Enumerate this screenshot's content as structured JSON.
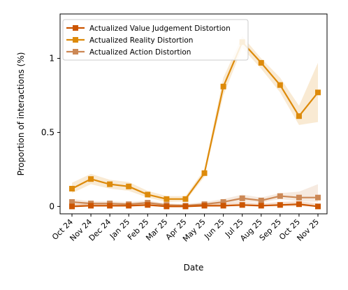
{
  "chart_data": {
    "type": "line",
    "xlabel": "Date",
    "ylabel": "Proportion of interactions (%)",
    "categories": [
      "Oct 24",
      "Nov 24",
      "Dec 24",
      "Jan 25",
      "Feb 25",
      "Mar 25",
      "Apr 25",
      "May 25",
      "Jun 25",
      "Jul 25",
      "Aug 25",
      "Sep 25",
      "Oct 25",
      "Nov 25"
    ],
    "ylim": [
      -0.05,
      1.3
    ],
    "yticks": [
      0,
      0.5,
      1
    ],
    "ytick_labels": [
      "0",
      "0.5",
      "1"
    ],
    "grid": false,
    "legend_position": "top-left",
    "series": [
      {
        "name": "Actualized Value Judgement Distortion",
        "color": "#cc5500",
        "values": [
          0.0,
          0.005,
          0.005,
          0.005,
          0.01,
          0.0,
          0.0,
          0.005,
          0.005,
          0.01,
          0.005,
          0.01,
          0.015,
          0.0
        ],
        "lower": [
          0.0,
          0.0,
          0.0,
          0.0,
          0.0,
          0.0,
          0.0,
          0.0,
          0.0,
          0.0,
          0.0,
          0.0,
          0.0,
          0.0
        ],
        "upper": [
          0.015,
          0.02,
          0.02,
          0.02,
          0.025,
          0.015,
          0.015,
          0.02,
          0.02,
          0.03,
          0.02,
          0.03,
          0.035,
          0.02
        ]
      },
      {
        "name": "Actualized Reality Distortion",
        "color": "#dd8a0a",
        "values": [
          0.12,
          0.185,
          0.15,
          0.135,
          0.08,
          0.05,
          0.05,
          0.225,
          0.81,
          1.11,
          0.97,
          0.82,
          0.61,
          0.77
        ],
        "lower": [
          0.09,
          0.15,
          0.12,
          0.105,
          0.06,
          0.03,
          0.035,
          0.2,
          0.75,
          1.07,
          0.93,
          0.77,
          0.55,
          0.57
        ],
        "upper": [
          0.16,
          0.22,
          0.18,
          0.165,
          0.105,
          0.07,
          0.07,
          0.25,
          0.87,
          1.15,
          1.0,
          0.87,
          0.68,
          0.97
        ]
      },
      {
        "name": "Actualized Action Distortion",
        "color": "#cc8855",
        "values": [
          0.03,
          0.02,
          0.02,
          0.015,
          0.025,
          0.01,
          0.005,
          0.015,
          0.03,
          0.055,
          0.04,
          0.07,
          0.06,
          0.06
        ],
        "lower": [
          0.01,
          0.005,
          0.005,
          0.0,
          0.01,
          0.0,
          0.0,
          0.0,
          0.015,
          0.035,
          0.025,
          0.05,
          0.035,
          0.03
        ],
        "upper": [
          0.05,
          0.035,
          0.035,
          0.03,
          0.04,
          0.02,
          0.015,
          0.03,
          0.05,
          0.08,
          0.06,
          0.09,
          0.1,
          0.15
        ]
      }
    ]
  }
}
